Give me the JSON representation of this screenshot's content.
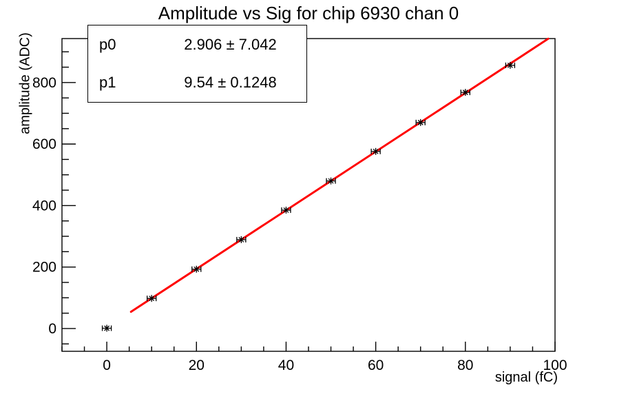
{
  "chart_data": {
    "type": "scatter",
    "title": "Amplitude vs Sig for chip 6930 chan 0",
    "xlabel": "signal (fC)",
    "ylabel": "amplitude (ADC)",
    "xlim": [
      -10,
      100
    ],
    "ylim": [
      -74,
      943
    ],
    "x_major_ticks": [
      0,
      20,
      40,
      60,
      80,
      100
    ],
    "x_minor_step": 5,
    "y_major_ticks": [
      0,
      200,
      400,
      600,
      800
    ],
    "y_minor_step": 50,
    "grid": false,
    "legend": "none",
    "points": {
      "x": [
        0,
        10,
        20,
        30,
        40,
        50,
        60,
        70,
        80,
        90
      ],
      "y": [
        1,
        98,
        193,
        289,
        385,
        480,
        576,
        670,
        768,
        856
      ],
      "x_err": [
        1,
        1,
        1,
        1,
        1,
        1,
        1,
        1,
        1,
        1
      ]
    },
    "fit_line": {
      "p0": 2.906,
      "p1": 9.54,
      "x_start": 5.4,
      "x_end": 98.5,
      "color": "#ff0000",
      "width": 3
    },
    "marker": {
      "style": "star",
      "color": "#000000"
    }
  },
  "stats_box": {
    "rows": [
      {
        "name": "p0",
        "value": "2.906 ± 7.042"
      },
      {
        "name": "p1",
        "value": "9.54 ± 0.1248"
      }
    ]
  },
  "colors": {
    "background": "#ffffff",
    "frame": "#000000",
    "text": "#000000",
    "fit": "#ff0000"
  }
}
